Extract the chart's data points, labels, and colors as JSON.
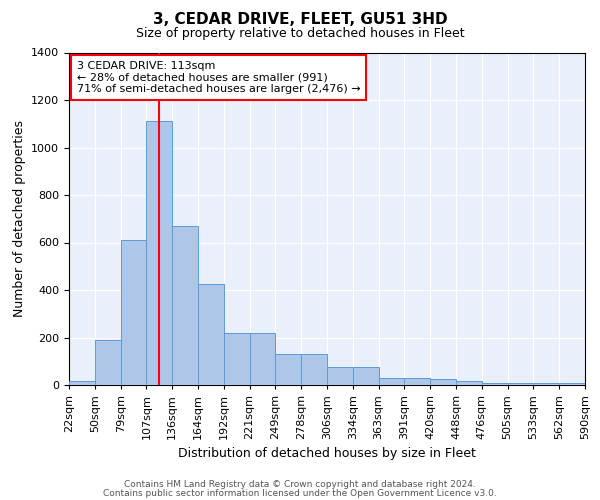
{
  "title": "3, CEDAR DRIVE, FLEET, GU51 3HD",
  "subtitle": "Size of property relative to detached houses in Fleet",
  "xlabel": "Distribution of detached houses by size in Fleet",
  "ylabel": "Number of detached properties",
  "annotation_line1": "3 CEDAR DRIVE: 113sqm",
  "annotation_line2": "← 28% of detached houses are smaller (991)",
  "annotation_line3": "71% of semi-detached houses are larger (2,476) →",
  "bar_values": [
    15,
    190,
    610,
    1110,
    670,
    425,
    220,
    220,
    130,
    130,
    75,
    75,
    28,
    28,
    25,
    15,
    10,
    10,
    10,
    10
  ],
  "categories": [
    "22sqm",
    "50sqm",
    "79sqm",
    "107sqm",
    "136sqm",
    "164sqm",
    "192sqm",
    "221sqm",
    "249sqm",
    "278sqm",
    "306sqm",
    "334sqm",
    "363sqm",
    "391sqm",
    "420sqm",
    "448sqm",
    "476sqm",
    "505sqm",
    "533sqm",
    "562sqm",
    "590sqm"
  ],
  "bar_color": "#aec6e8",
  "bar_edgecolor": "#5b9bd5",
  "vline_x": 3.5,
  "vline_color": "red",
  "ylim": [
    0,
    1400
  ],
  "yticks": [
    0,
    200,
    400,
    600,
    800,
    1000,
    1200,
    1400
  ],
  "background_color": "#eaf0fb",
  "annotation_box_facecolor": "white",
  "annotation_box_edgecolor": "red",
  "footer1": "Contains HM Land Registry data © Crown copyright and database right 2024.",
  "footer2": "Contains public sector information licensed under the Open Government Licence v3.0.",
  "title_fontsize": 11,
  "subtitle_fontsize": 9,
  "ylabel_fontsize": 9,
  "xlabel_fontsize": 9,
  "tick_fontsize": 8,
  "annotation_fontsize": 8,
  "footer_fontsize": 6.5
}
